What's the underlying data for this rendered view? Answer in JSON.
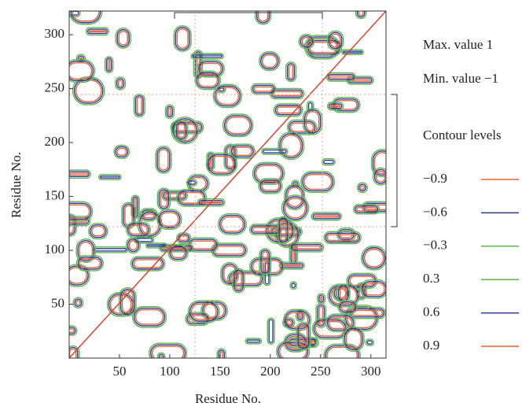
{
  "chart_data": {
    "type": "contour",
    "x_label": "Residue No.",
    "y_label": "Residue No.",
    "xlim": [
      0,
      315
    ],
    "ylim": [
      0,
      322
    ],
    "xticks": [
      50,
      100,
      150,
      200,
      250,
      300
    ],
    "yticks": [
      50,
      100,
      150,
      200,
      250,
      300
    ],
    "max_text": "Max. value 1",
    "min_text": "Min. value −1",
    "legend_title": "Contour levels",
    "levels": [
      {
        "value": -0.9,
        "label": "−0.9",
        "color": "#e8623c"
      },
      {
        "value": -0.6,
        "label": "−0.6",
        "color": "#2b3a9b"
      },
      {
        "value": -0.3,
        "label": "−0.3",
        "color": "#5cb84a"
      },
      {
        "value": 0.3,
        "label": "0.3",
        "color": "#5cb84a"
      },
      {
        "value": 0.6,
        "label": "0.6",
        "color": "#2b3a9b"
      },
      {
        "value": 0.9,
        "label": "0.9",
        "color": "#e8623c"
      }
    ]
  }
}
